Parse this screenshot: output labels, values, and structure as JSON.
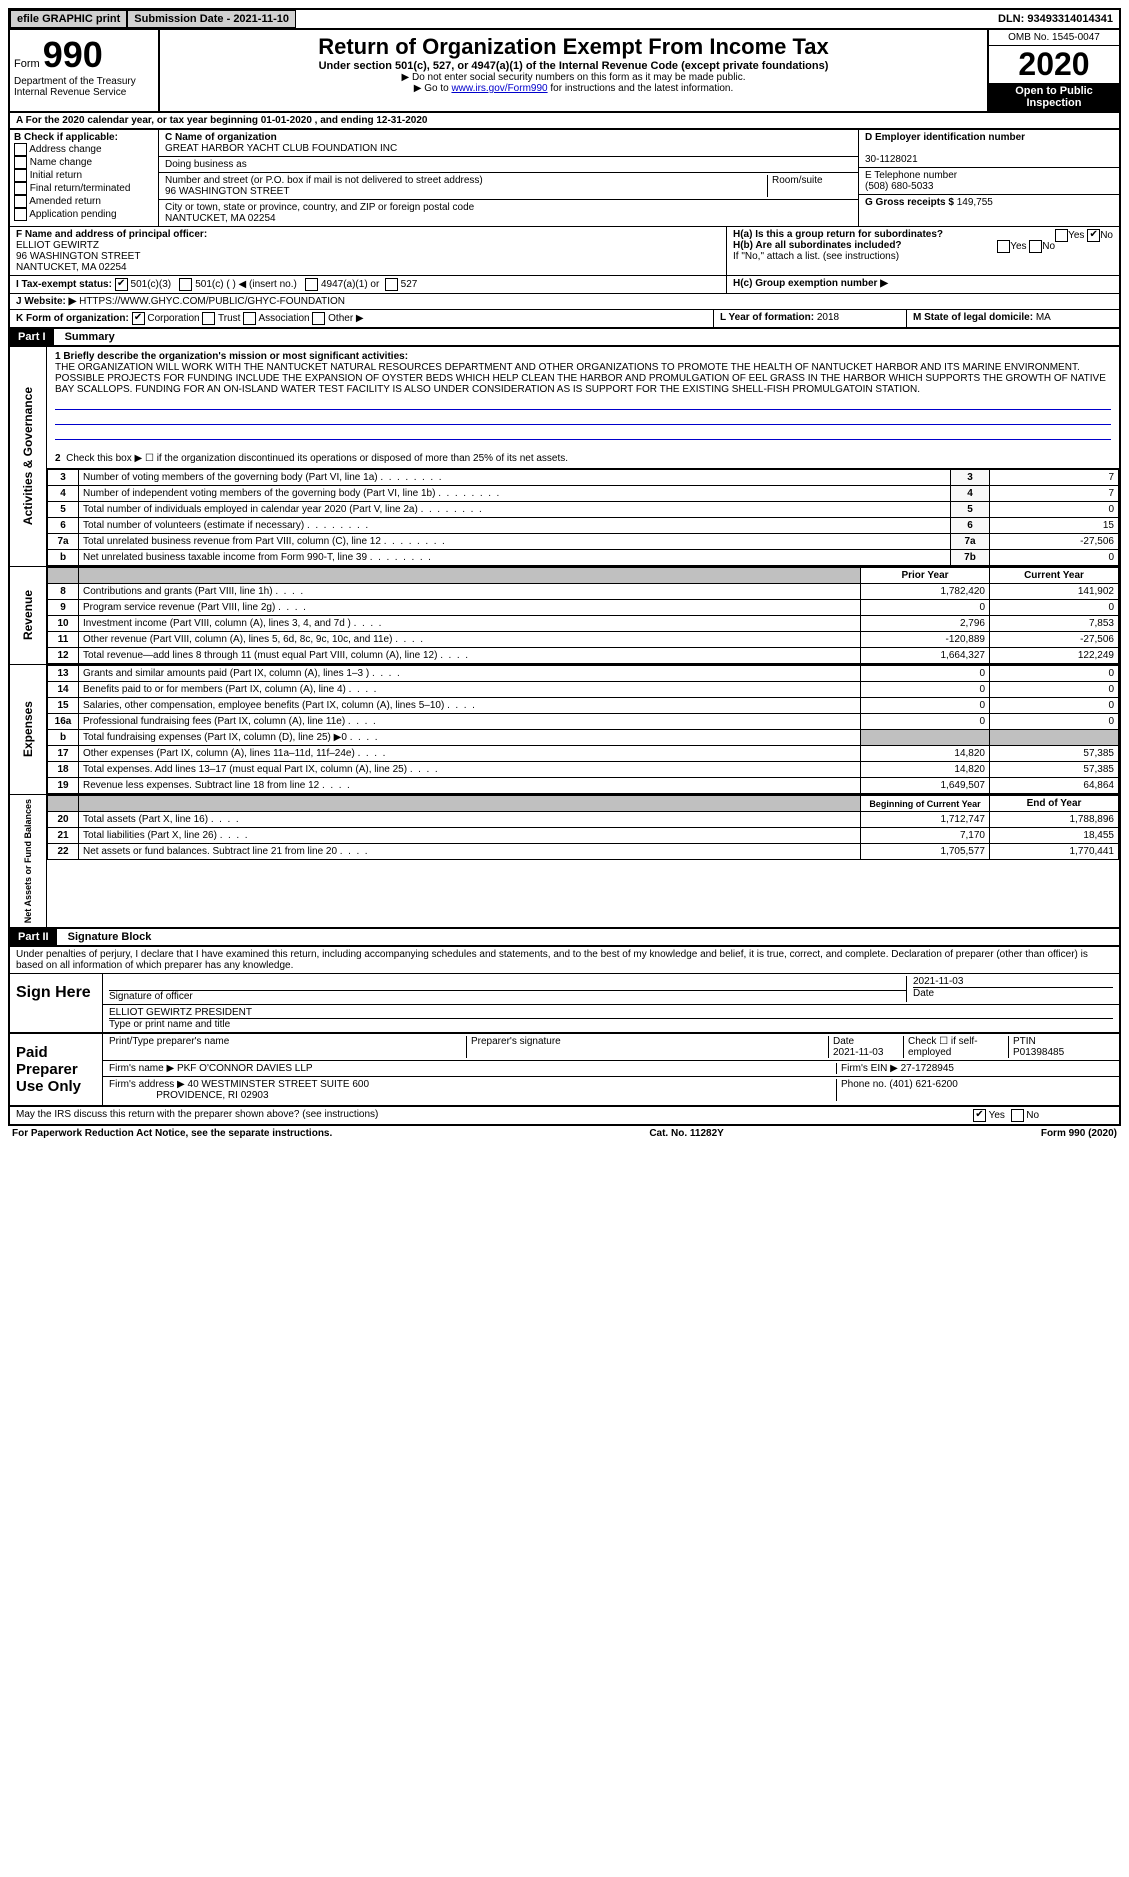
{
  "topbar": {
    "efile": "efile GRAPHIC print",
    "submission_label": "Submission Date - 2021-11-10",
    "dln_label": "DLN: 93493314014341"
  },
  "header": {
    "form_prefix": "Form",
    "form_number": "990",
    "dept": "Department of the Treasury\nInternal Revenue Service",
    "title": "Return of Organization Exempt From Income Tax",
    "subtitle": "Under section 501(c), 527, or 4947(a)(1) of the Internal Revenue Code (except private foundations)",
    "instr1": "▶ Do not enter social security numbers on this form as it may be made public.",
    "instr2_pre": "▶ Go to ",
    "instr2_link": "www.irs.gov/Form990",
    "instr2_post": " for instructions and the latest information.",
    "omb": "OMB No. 1545-0047",
    "year": "2020",
    "open_public": "Open to Public Inspection"
  },
  "line_a": "For the 2020 calendar year, or tax year beginning 01-01-2020   , and ending 12-31-2020",
  "section_b": {
    "label": "B Check if applicable:",
    "opts": [
      "Address change",
      "Name change",
      "Initial return",
      "Final return/terminated",
      "Amended return",
      "Application pending"
    ]
  },
  "section_c": {
    "label": "C Name of organization",
    "name": "GREAT HARBOR YACHT CLUB FOUNDATION INC",
    "dba_label": "Doing business as",
    "addr_label": "Number and street (or P.O. box if mail is not delivered to street address)",
    "addr": "96 WASHINGTON STREET",
    "room_label": "Room/suite",
    "city_label": "City or town, state or province, country, and ZIP or foreign postal code",
    "city": "NANTUCKET, MA  02254"
  },
  "section_d": {
    "label": "D Employer identification number",
    "value": "30-1128021"
  },
  "section_e": {
    "label": "E Telephone number",
    "value": "(508) 680-5033"
  },
  "section_g": {
    "label": "G Gross receipts $",
    "value": "149,755"
  },
  "section_f": {
    "label": "F  Name and address of principal officer:",
    "name": "ELLIOT GEWIRTZ",
    "addr1": "96 WASHINGTON STREET",
    "addr2": "NANTUCKET, MA  02254"
  },
  "section_h": {
    "ha": "H(a)  Is this a group return for subordinates?",
    "hb": "H(b)  Are all subordinates included?",
    "hb_note": "If \"No,\" attach a list. (see instructions)",
    "hc": "H(c)  Group exemption number ▶",
    "yes": "Yes",
    "no": "No"
  },
  "line_i": {
    "label": "I   Tax-exempt status:",
    "opts": [
      "501(c)(3)",
      "501(c) (  ) ◀ (insert no.)",
      "4947(a)(1) or",
      "527"
    ]
  },
  "line_j": {
    "label": "J   Website: ▶",
    "value": "HTTPS://WWW.GHYC.COM/PUBLIC/GHYC-FOUNDATION"
  },
  "line_k": {
    "label": "K Form of organization:",
    "opts": [
      "Corporation",
      "Trust",
      "Association",
      "Other ▶"
    ]
  },
  "line_l": {
    "label": "L Year of formation:",
    "value": "2018"
  },
  "line_m": {
    "label": "M State of legal domicile:",
    "value": "MA"
  },
  "part1": {
    "header": "Part I",
    "title": "Summary",
    "q1_label": "1  Briefly describe the organization's mission or most significant activities:",
    "q1_text": "THE ORGANIZATION WILL WORK WITH THE NANTUCKET NATURAL RESOURCES DEPARTMENT AND OTHER ORGANIZATIONS TO PROMOTE THE HEALTH OF NANTUCKET HARBOR AND ITS MARINE ENVIRONMENT. POSSIBLE PROJECTS FOR FUNDING INCLUDE THE EXPANSION OF OYSTER BEDS WHICH HELP CLEAN THE HARBOR AND PROMULGATION OF EEL GRASS IN THE HARBOR WHICH SUPPORTS THE GROWTH OF NATIVE BAY SCALLOPS. FUNDING FOR AN ON-ISLAND WATER TEST FACILITY IS ALSO UNDER CONSIDERATION AS IS SUPPORT FOR THE EXISTING SHELL-FISH PROMULGATOIN STATION.",
    "q2": "Check this box ▶ ☐ if the organization discontinued its operations or disposed of more than 25% of its net assets.",
    "side_labels": {
      "ag": "Activities & Governance",
      "rev": "Revenue",
      "exp": "Expenses",
      "net": "Net Assets or Fund Balances"
    },
    "col_headers": {
      "prior": "Prior Year",
      "current": "Current Year",
      "bcy": "Beginning of Current Year",
      "eoy": "End of Year"
    },
    "gov_rows": [
      {
        "n": "3",
        "t": "Number of voting members of the governing body (Part VI, line 1a)",
        "box": "3",
        "v": "7"
      },
      {
        "n": "4",
        "t": "Number of independent voting members of the governing body (Part VI, line 1b)",
        "box": "4",
        "v": "7"
      },
      {
        "n": "5",
        "t": "Total number of individuals employed in calendar year 2020 (Part V, line 2a)",
        "box": "5",
        "v": "0"
      },
      {
        "n": "6",
        "t": "Total number of volunteers (estimate if necessary)",
        "box": "6",
        "v": "15"
      },
      {
        "n": "7a",
        "t": "Total unrelated business revenue from Part VIII, column (C), line 12",
        "box": "7a",
        "v": "-27,506"
      },
      {
        "n": "b",
        "t": "Net unrelated business taxable income from Form 990-T, line 39",
        "box": "7b",
        "v": "0"
      }
    ],
    "rev_rows": [
      {
        "n": "8",
        "t": "Contributions and grants (Part VIII, line 1h)",
        "p": "1,782,420",
        "c": "141,902"
      },
      {
        "n": "9",
        "t": "Program service revenue (Part VIII, line 2g)",
        "p": "0",
        "c": "0"
      },
      {
        "n": "10",
        "t": "Investment income (Part VIII, column (A), lines 3, 4, and 7d )",
        "p": "2,796",
        "c": "7,853"
      },
      {
        "n": "11",
        "t": "Other revenue (Part VIII, column (A), lines 5, 6d, 8c, 9c, 10c, and 11e)",
        "p": "-120,889",
        "c": "-27,506"
      },
      {
        "n": "12",
        "t": "Total revenue—add lines 8 through 11 (must equal Part VIII, column (A), line 12)",
        "p": "1,664,327",
        "c": "122,249"
      }
    ],
    "exp_rows": [
      {
        "n": "13",
        "t": "Grants and similar amounts paid (Part IX, column (A), lines 1–3 )",
        "p": "0",
        "c": "0"
      },
      {
        "n": "14",
        "t": "Benefits paid to or for members (Part IX, column (A), line 4)",
        "p": "0",
        "c": "0"
      },
      {
        "n": "15",
        "t": "Salaries, other compensation, employee benefits (Part IX, column (A), lines 5–10)",
        "p": "0",
        "c": "0"
      },
      {
        "n": "16a",
        "t": "Professional fundraising fees (Part IX, column (A), line 11e)",
        "p": "0",
        "c": "0"
      },
      {
        "n": "b",
        "t": "Total fundraising expenses (Part IX, column (D), line 25) ▶0",
        "p": "",
        "c": "",
        "shaded": true
      },
      {
        "n": "17",
        "t": "Other expenses (Part IX, column (A), lines 11a–11d, 11f–24e)",
        "p": "14,820",
        "c": "57,385"
      },
      {
        "n": "18",
        "t": "Total expenses. Add lines 13–17 (must equal Part IX, column (A), line 25)",
        "p": "14,820",
        "c": "57,385"
      },
      {
        "n": "19",
        "t": "Revenue less expenses. Subtract line 18 from line 12",
        "p": "1,649,507",
        "c": "64,864"
      }
    ],
    "net_rows": [
      {
        "n": "20",
        "t": "Total assets (Part X, line 16)",
        "p": "1,712,747",
        "c": "1,788,896"
      },
      {
        "n": "21",
        "t": "Total liabilities (Part X, line 26)",
        "p": "7,170",
        "c": "18,455"
      },
      {
        "n": "22",
        "t": "Net assets or fund balances. Subtract line 21 from line 20",
        "p": "1,705,577",
        "c": "1,770,441"
      }
    ]
  },
  "part2": {
    "header": "Part II",
    "title": "Signature Block",
    "penalty": "Under penalties of perjury, I declare that I have examined this return, including accompanying schedules and statements, and to the best of my knowledge and belief, it is true, correct, and complete. Declaration of preparer (other than officer) is based on all information of which preparer has any knowledge.",
    "sign_here": "Sign Here",
    "sig_officer": "Signature of officer",
    "sig_date": "2021-11-03",
    "officer_name": "ELLIOT GEWIRTZ  PRESIDENT",
    "type_name": "Type or print name and title",
    "paid_prep": "Paid Preparer Use Only",
    "prep_name_label": "Print/Type preparer's name",
    "prep_sig_label": "Preparer's signature",
    "date_label": "Date",
    "date_val": "2021-11-03",
    "check_label": "Check ☐ if self-employed",
    "ptin_label": "PTIN",
    "ptin": "P01398485",
    "firm_name_label": "Firm's name    ▶",
    "firm_name": "PKF O'CONNOR DAVIES LLP",
    "firm_ein_label": "Firm's EIN ▶",
    "firm_ein": "27-1728945",
    "firm_addr_label": "Firm's address ▶",
    "firm_addr1": "40 WESTMINSTER STREET SUITE 600",
    "firm_addr2": "PROVIDENCE, RI  02903",
    "phone_label": "Phone no.",
    "phone": "(401) 621-6200",
    "discuss": "May the IRS discuss this return with the preparer shown above? (see instructions)"
  },
  "footer": {
    "left": "For Paperwork Reduction Act Notice, see the separate instructions.",
    "mid": "Cat. No. 11282Y",
    "right": "Form 990 (2020)"
  }
}
